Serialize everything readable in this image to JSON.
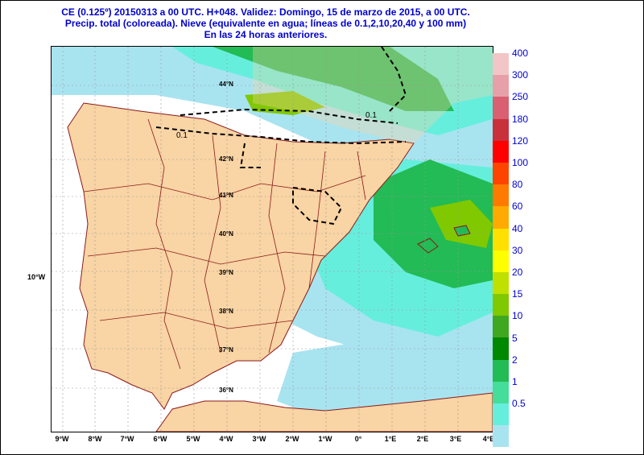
{
  "header": {
    "line1": "CE (0.125º) 20150313 a 00 UTC.  H+048. Validez: Domingo, 15 de marzo de 2015,  a  00 UTC.",
    "line2": "Precip. total (coloreada). Nieve (equivalente en agua; líneas de 0.1,2,10,20,40 y 100 mm)",
    "line3": "En las 24 horas anteriores."
  },
  "left_label": "10°W",
  "lon_labels": [
    "9°W",
    "8°W",
    "7°W",
    "6°W",
    "5°W",
    "4°W",
    "3°W",
    "2°W",
    "1°W",
    "0°",
    "1°E",
    "2°E",
    "3°E",
    "4°E"
  ],
  "lat_labels": [
    "44°N",
    "42°N",
    "41°N",
    "40°N",
    "39°N",
    "38°N",
    "37°N",
    "36°N"
  ],
  "contour_labels": [
    "0.1",
    "0.1"
  ],
  "legend": {
    "labels": [
      "400",
      "300",
      "250",
      "180",
      "120",
      "100",
      "80",
      "60",
      "40",
      "30",
      "20",
      "15",
      "10",
      "5",
      "2",
      "1",
      "0.5"
    ],
    "colors": [
      "#f2c6c6",
      "#e8a0a8",
      "#d86070",
      "#c8303c",
      "#ff0000",
      "#ff4400",
      "#ff7a00",
      "#ffaa00",
      "#ffe000",
      "#ffff00",
      "#c0e000",
      "#80c800",
      "#40a820",
      "#008800",
      "#22bb55",
      "#44dd99",
      "#66eedd",
      "#a8e4f0"
    ]
  }
}
